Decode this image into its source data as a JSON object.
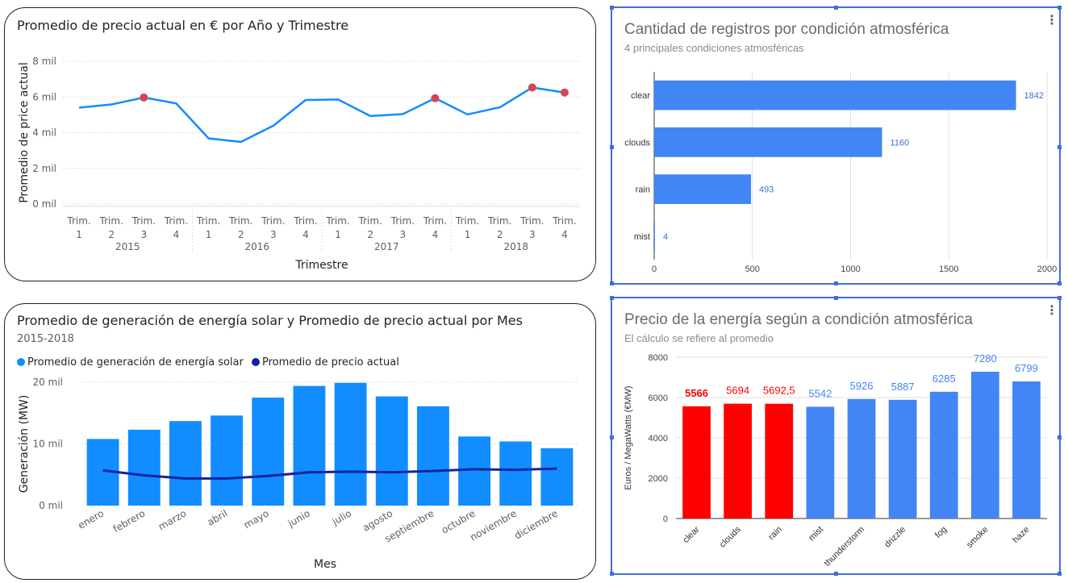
{
  "charts": {
    "price_line": {
      "title": "Promedio de precio actual en € por Año y Trimestre",
      "ylabel": "Promedio de price actual",
      "xlabel": "Trimestre",
      "y_ticks": [
        "8 mil",
        "6 mil",
        "4 mil",
        "2 mil",
        "0 mil"
      ],
      "quarter_label": "Trim.",
      "quarters": [
        "1",
        "2",
        "3",
        "4"
      ],
      "years": [
        "2015",
        "2016",
        "2017",
        "2018"
      ],
      "line_color": "#118DFF",
      "marker_color": "#D64550"
    },
    "weather_count": {
      "title": "Cantidad de registros por condición atmosférica",
      "subtitle": "4 principales condiciones atmosféricas",
      "bar_color": "#4285F4",
      "x_ticks": [
        "0",
        "500",
        "1000",
        "1500",
        "2000"
      ]
    },
    "solar_combo": {
      "title": "Promedio de generación de energía solar y Promedio de precio actual por Mes",
      "subtitle": "2015-2018",
      "ylabel": "Generación (MW)",
      "xlabel": "Mes",
      "y_ticks": [
        "20 mil",
        "10 mil",
        "0 mil"
      ],
      "bar_color": "#118DFF",
      "line_color": "#12239E"
    },
    "energy_price": {
      "title": "Precio de la energía según a condición atmosférica",
      "subtitle": "El cálculo se refiere al promedio",
      "ylabel": "Euros / MegaWatts (€MW)",
      "y_ticks": [
        "8000",
        "6000",
        "4000",
        "2000",
        "0"
      ],
      "highlight_color": "#FF0000",
      "bar_color": "#4285F4"
    }
  },
  "chart_data": [
    {
      "type": "line",
      "title": "Promedio de precio actual en € por Año y Trimestre",
      "xlabel": "Trimestre",
      "ylabel": "Promedio de price actual",
      "x": [
        "2015 Trim. 1",
        "2015 Trim. 2",
        "2015 Trim. 3",
        "2015 Trim. 4",
        "2016 Trim. 1",
        "2016 Trim. 2",
        "2016 Trim. 3",
        "2016 Trim. 4",
        "2017 Trim. 1",
        "2017 Trim. 2",
        "2017 Trim. 3",
        "2017 Trim. 4",
        "2018 Trim. 1",
        "2018 Trim. 2",
        "2018 Trim. 3",
        "2018 Trim. 4"
      ],
      "values": [
        5400,
        5580,
        5970,
        5640,
        3680,
        3480,
        4390,
        5830,
        5860,
        4930,
        5040,
        5930,
        5020,
        5420,
        6530,
        6250
      ],
      "markers": [
        2,
        11,
        14,
        15
      ],
      "ylim": [
        0,
        8000
      ],
      "grid": true
    },
    {
      "type": "bar",
      "orientation": "horizontal",
      "title": "Cantidad de registros por condición atmosférica",
      "categories": [
        "clear",
        "clouds",
        "rain",
        "mist"
      ],
      "values": [
        1842,
        1160,
        493,
        4
      ],
      "xlim": [
        0,
        2000
      ],
      "grid": true
    },
    {
      "type": "bar",
      "title": "Promedio de generación de energía solar y Promedio de precio actual por Mes",
      "xlabel": "Mes",
      "ylabel": "Generación (MW)",
      "categories": [
        "enero",
        "febrero",
        "marzo",
        "abril",
        "mayo",
        "junio",
        "julio",
        "agosto",
        "septiembre",
        "octubre",
        "noviembre",
        "diciembre"
      ],
      "series": [
        {
          "name": "Promedio de generación  de energía solar",
          "type": "bar",
          "values": [
            10800,
            12300,
            13700,
            14600,
            17500,
            19400,
            19900,
            17700,
            16100,
            11200,
            10400,
            9300
          ]
        },
        {
          "name": "Promedio de precio actual",
          "type": "line",
          "values": [
            5700,
            4900,
            4400,
            4400,
            4800,
            5400,
            5500,
            5400,
            5600,
            5900,
            5800,
            6000
          ]
        }
      ],
      "ylim": [
        0,
        20000
      ],
      "legend": "top-left"
    },
    {
      "type": "bar",
      "title": "Precio de la energía según a condición atmosférica",
      "ylabel": "Euros / MegaWatts (€MW)",
      "categories": [
        "clear",
        "clouds",
        "rain",
        "mist",
        "thunderstorm",
        "drizzle",
        "fog",
        "smoke",
        "haze"
      ],
      "values": [
        5566,
        5694,
        5692.5,
        5542,
        5926,
        5887,
        6285,
        7280,
        6799
      ],
      "labels": [
        "5566",
        "5694",
        "5692,5",
        "5542",
        "5926",
        "5887",
        "6285",
        "7280",
        "6799"
      ],
      "highlighted": [
        0,
        1,
        2
      ],
      "ylim": [
        0,
        8000
      ],
      "grid": true
    }
  ]
}
